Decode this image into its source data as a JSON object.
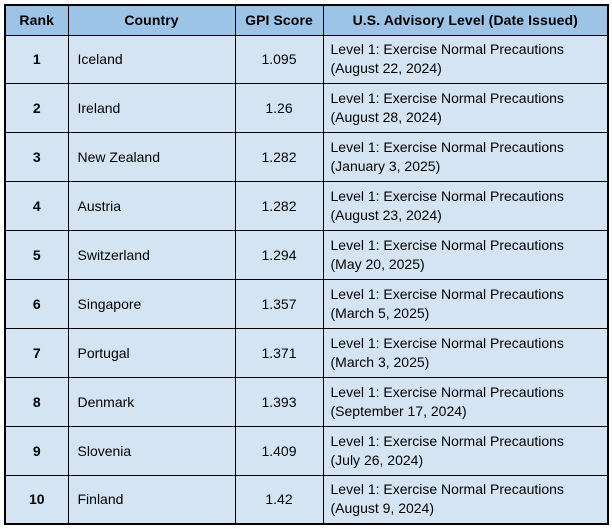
{
  "colors": {
    "header_bg": "#9DC3E6",
    "row_bg": "#D5E4F3",
    "border": "#000000",
    "text": "#000000",
    "page_bg": "#FFFFFF"
  },
  "table": {
    "headers": [
      "Rank",
      "Country",
      "GPI Score",
      "U.S. Advisory Level (Date Issued)"
    ],
    "rows": [
      {
        "rank": "1",
        "country": "Iceland",
        "gpi_score": "1.095",
        "advisory_level": "Level 1: Exercise Normal Precautions",
        "advisory_date": "(August 22, 2024)"
      },
      {
        "rank": "2",
        "country": "Ireland",
        "gpi_score": "1.26",
        "advisory_level": "Level 1: Exercise Normal Precautions",
        "advisory_date": "(August 28, 2024)"
      },
      {
        "rank": "3",
        "country": "New Zealand",
        "gpi_score": "1.282",
        "advisory_level": "Level 1: Exercise Normal Precautions",
        "advisory_date": "(January 3, 2025)"
      },
      {
        "rank": "4",
        "country": "Austria",
        "gpi_score": "1.282",
        "advisory_level": "Level 1: Exercise Normal Precautions",
        "advisory_date": "(August 23, 2024)"
      },
      {
        "rank": "5",
        "country": "Switzerland",
        "gpi_score": "1.294",
        "advisory_level": "Level 1: Exercise Normal Precautions",
        "advisory_date": "(May 20, 2025)"
      },
      {
        "rank": "6",
        "country": "Singapore",
        "gpi_score": "1.357",
        "advisory_level": "Level 1: Exercise Normal Precautions",
        "advisory_date": "(March 5, 2025)"
      },
      {
        "rank": "7",
        "country": "Portugal",
        "gpi_score": "1.371",
        "advisory_level": "Level 1: Exercise Normal Precautions",
        "advisory_date": "(March 3, 2025)"
      },
      {
        "rank": "8",
        "country": "Denmark",
        "gpi_score": "1.393",
        "advisory_level": "Level 1: Exercise Normal Precautions",
        "advisory_date": "(September 17, 2024)"
      },
      {
        "rank": "9",
        "country": "Slovenia",
        "gpi_score": "1.409",
        "advisory_level": "Level 1: Exercise Normal Precautions",
        "advisory_date": "(July 26, 2024)"
      },
      {
        "rank": "10",
        "country": "Finland",
        "gpi_score": "1.42",
        "advisory_level": "Level 1: Exercise Normal Precautions",
        "advisory_date": "(August 9, 2024)"
      }
    ]
  },
  "chart_data": {
    "type": "table",
    "title": "",
    "columns": [
      "Rank",
      "Country",
      "GPI Score",
      "U.S. Advisory Level (Date Issued)"
    ],
    "rows": [
      [
        "1",
        "Iceland",
        "1.095",
        "Level 1: Exercise Normal Precautions (August 22, 2024)"
      ],
      [
        "2",
        "Ireland",
        "1.26",
        "Level 1: Exercise Normal Precautions (August 28, 2024)"
      ],
      [
        "3",
        "New Zealand",
        "1.282",
        "Level 1: Exercise Normal Precautions (January 3, 2025)"
      ],
      [
        "4",
        "Austria",
        "1.282",
        "Level 1: Exercise Normal Precautions (August 23, 2024)"
      ],
      [
        "5",
        "Switzerland",
        "1.294",
        "Level 1: Exercise Normal Precautions (May 20, 2025)"
      ],
      [
        "6",
        "Singapore",
        "1.357",
        "Level 1: Exercise Normal Precautions (March 5, 2025)"
      ],
      [
        "7",
        "Portugal",
        "1.371",
        "Level 1: Exercise Normal Precautions (March 3, 2025)"
      ],
      [
        "8",
        "Denmark",
        "1.393",
        "Level 1: Exercise Normal Precautions (September 17, 2024)"
      ],
      [
        "9",
        "Slovenia",
        "1.409",
        "Level 1: Exercise Normal Precautions (July 26, 2024)"
      ],
      [
        "10",
        "Finland",
        "1.42",
        "Level 1: Exercise Normal Precautions (August 9, 2024)"
      ]
    ]
  }
}
